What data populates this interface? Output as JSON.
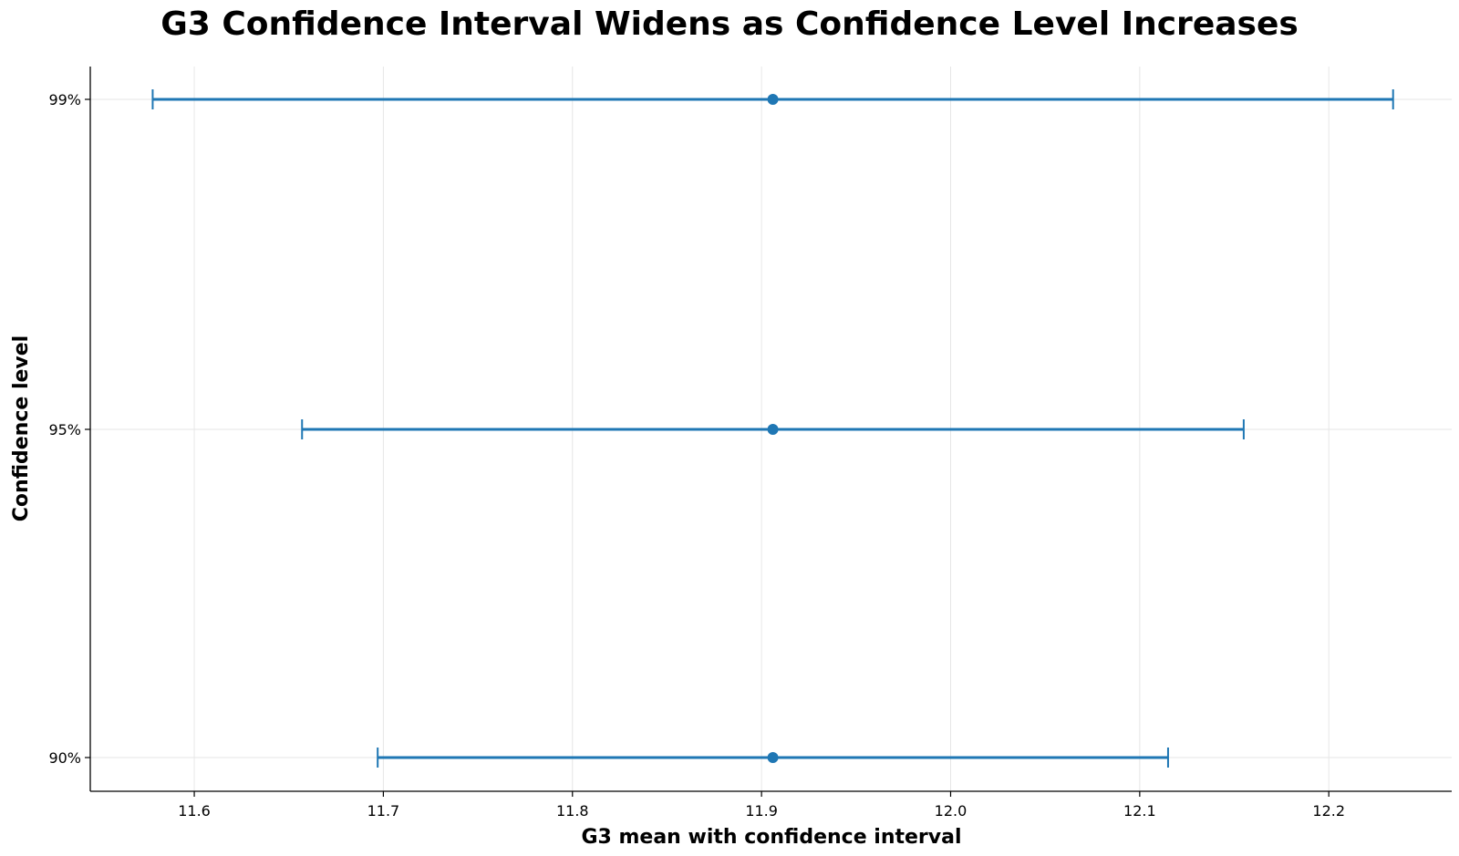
{
  "chart_data": {
    "type": "errorbar",
    "orientation": "horizontal",
    "title": "G3 Confidence Interval Widens as Confidence Level Increases",
    "xlabel": "G3 mean with confidence interval",
    "ylabel": "Confidence level",
    "xlim": [
      11.545,
      12.265
    ],
    "x_ticks": [
      "11.6",
      "11.7",
      "11.8",
      "11.9",
      "12.0",
      "12.1",
      "12.2"
    ],
    "categories": [
      "90%",
      "95%",
      "99%"
    ],
    "points": [
      {
        "label": "90%",
        "mean": 11.906,
        "lower": 11.697,
        "upper": 12.115
      },
      {
        "label": "95%",
        "mean": 11.906,
        "lower": 11.657,
        "upper": 12.155
      },
      {
        "label": "99%",
        "mean": 11.906,
        "lower": 11.578,
        "upper": 12.234
      }
    ],
    "grid": true,
    "color": "#1f77b4"
  }
}
